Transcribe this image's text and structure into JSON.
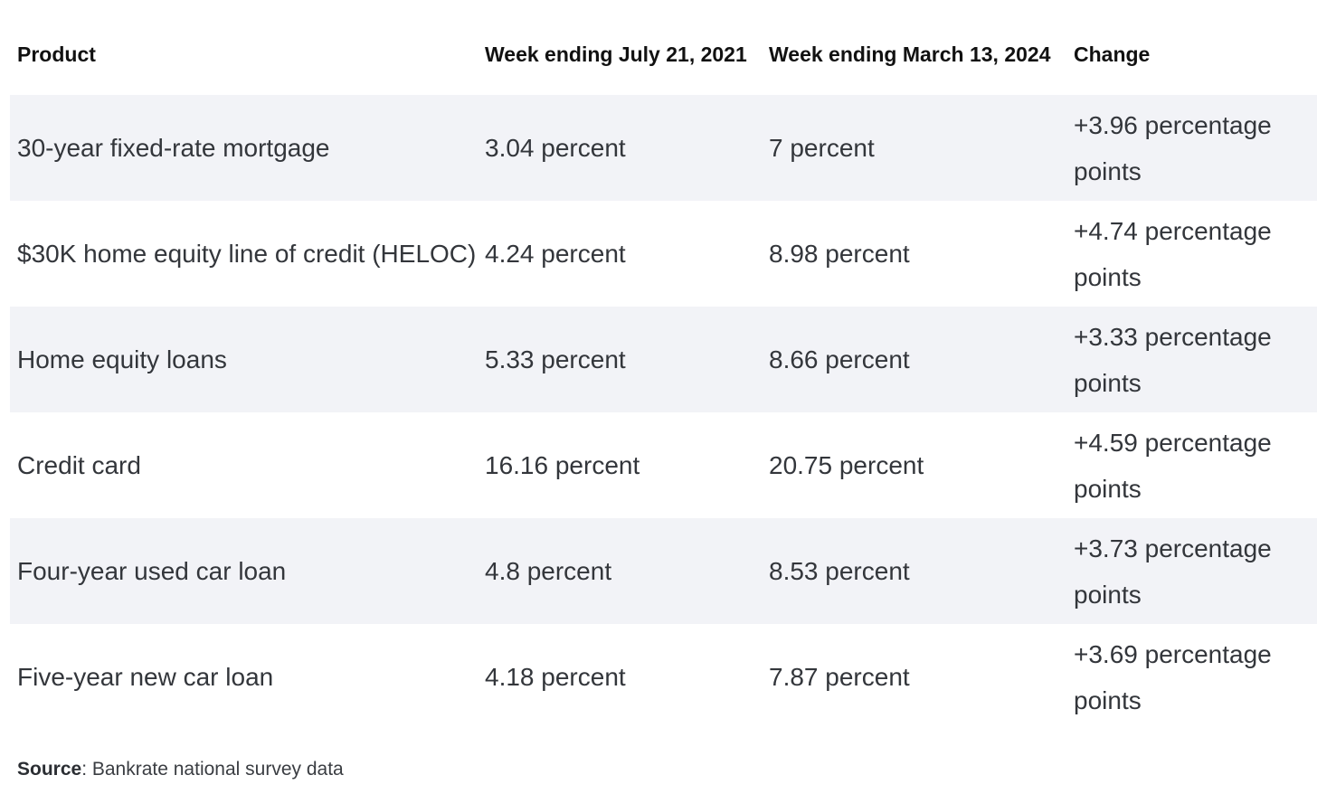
{
  "table": {
    "headers": {
      "product": "Product",
      "week_2021": "Week ending July 21, 2021",
      "week_2024": "Week ending March 13, 2024",
      "change": "Change"
    },
    "rows": [
      {
        "product": "30-year fixed-rate mortgage",
        "rate_2021": "3.04 percent",
        "rate_2024": "7 percent",
        "change": "+3.96 percentage points"
      },
      {
        "product": "$30K home equity line of credit (HELOC)",
        "rate_2021": "4.24 percent",
        "rate_2024": "8.98 percent",
        "change": "+4.74 percentage points"
      },
      {
        "product": "Home equity loans",
        "rate_2021": "5.33 percent",
        "rate_2024": "8.66 percent",
        "change": "+3.33 percentage points"
      },
      {
        "product": "Credit card",
        "rate_2021": "16.16 percent",
        "rate_2024": "20.75 percent",
        "change": "+4.59 percentage points"
      },
      {
        "product": "Four-year used car loan",
        "rate_2021": "4.8 percent",
        "rate_2024": "8.53 percent",
        "change": "+3.73 percentage points"
      },
      {
        "product": "Five-year new car loan",
        "rate_2021": "4.18 percent",
        "rate_2024": "7.87 percent",
        "change": "+3.69 percentage points"
      }
    ]
  },
  "source": {
    "label": "Source",
    "text": ": Bankrate national survey data"
  },
  "colors": {
    "row_shade": "#f2f3f7",
    "header_text": "#111111",
    "body_text": "#33363b"
  }
}
